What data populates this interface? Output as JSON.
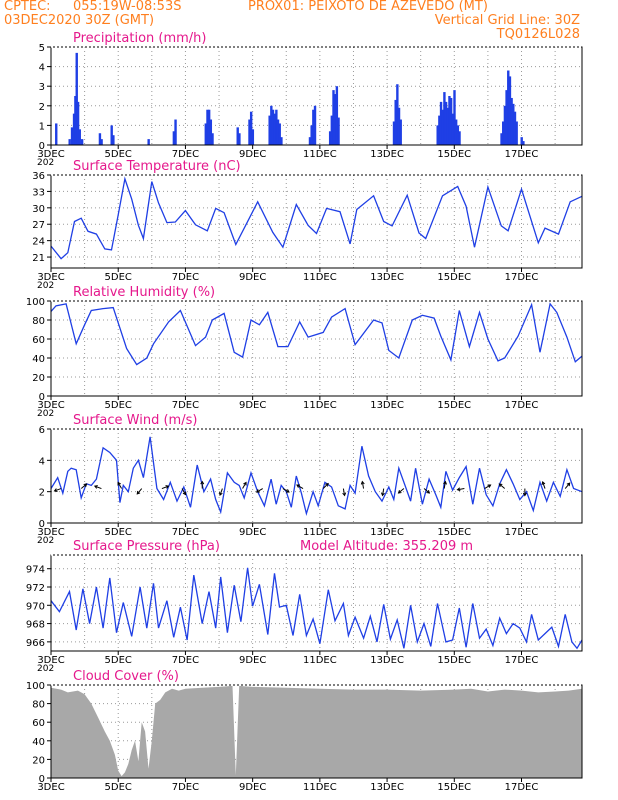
{
  "header": {
    "source": "CPTEC:",
    "coords": "055:19W-08:53S",
    "location": "PROX01: PEIXOTO DE AZEVEDO (MT)",
    "date": "03DEC2020 30Z (GMT)",
    "grid_note": "Vertical Grid Line: 30Z",
    "model": "TQ0126L028"
  },
  "colors": {
    "header": "#ff7f1f",
    "title": "#e5188c",
    "series": "#1f3fe5",
    "cloud": "#a8a8a8",
    "grid": "#9a9a9a",
    "axis": "#000000"
  },
  "x_axis": {
    "labels": [
      "3DEC",
      "5DEC",
      "7DEC",
      "9DEC",
      "11DEC",
      "13DEC",
      "15DEC",
      "17DEC"
    ],
    "label_days": [
      0,
      2,
      4,
      6,
      8,
      10,
      12,
      14
    ],
    "start_day": 0,
    "end_day": 15.8,
    "year_fragment": "202"
  },
  "chart_data": [
    {
      "id": "precip",
      "type": "bar",
      "title": "Precipitation (mm/h)",
      "ylim": [
        0,
        5
      ],
      "yticks": [
        0,
        1,
        2,
        3,
        4,
        5
      ],
      "bars": [
        [
          0.15,
          1.1
        ],
        [
          0.55,
          0.3
        ],
        [
          0.62,
          0.9
        ],
        [
          0.68,
          1.6
        ],
        [
          0.72,
          2.5
        ],
        [
          0.76,
          4.7
        ],
        [
          0.8,
          2.2
        ],
        [
          0.85,
          0.8
        ],
        [
          0.92,
          0.3
        ],
        [
          1.45,
          0.6
        ],
        [
          1.5,
          0.3
        ],
        [
          1.8,
          1.0
        ],
        [
          1.85,
          0.5
        ],
        [
          2.9,
          0.3
        ],
        [
          3.65,
          0.7
        ],
        [
          3.7,
          1.3
        ],
        [
          4.6,
          1.1
        ],
        [
          4.65,
          1.8
        ],
        [
          4.7,
          1.8
        ],
        [
          4.75,
          1.3
        ],
        [
          4.8,
          0.6
        ],
        [
          5.55,
          0.9
        ],
        [
          5.6,
          0.6
        ],
        [
          5.9,
          1.3
        ],
        [
          5.95,
          1.7
        ],
        [
          6.0,
          0.8
        ],
        [
          6.5,
          1.5
        ],
        [
          6.55,
          2.0
        ],
        [
          6.6,
          1.8
        ],
        [
          6.65,
          1.6
        ],
        [
          6.7,
          1.8
        ],
        [
          6.75,
          1.3
        ],
        [
          6.8,
          1.1
        ],
        [
          6.85,
          0.4
        ],
        [
          7.7,
          0.4
        ],
        [
          7.75,
          1.0
        ],
        [
          7.8,
          1.8
        ],
        [
          7.85,
          2.0
        ],
        [
          8.3,
          0.7
        ],
        [
          8.35,
          1.5
        ],
        [
          8.4,
          2.8
        ],
        [
          8.45,
          2.6
        ],
        [
          8.5,
          3.0
        ],
        [
          8.55,
          1.4
        ],
        [
          10.2,
          1.2
        ],
        [
          10.25,
          2.3
        ],
        [
          10.3,
          3.1
        ],
        [
          10.35,
          1.9
        ],
        [
          10.4,
          1.3
        ],
        [
          11.5,
          1.0
        ],
        [
          11.55,
          1.5
        ],
        [
          11.6,
          2.2
        ],
        [
          11.65,
          1.8
        ],
        [
          11.7,
          2.7
        ],
        [
          11.75,
          2.2
        ],
        [
          11.8,
          1.9
        ],
        [
          11.85,
          2.5
        ],
        [
          11.9,
          2.4
        ],
        [
          11.95,
          1.6
        ],
        [
          12.0,
          2.8
        ],
        [
          12.05,
          1.3
        ],
        [
          12.1,
          1.0
        ],
        [
          12.15,
          0.7
        ],
        [
          13.4,
          0.6
        ],
        [
          13.45,
          1.2
        ],
        [
          13.5,
          2.0
        ],
        [
          13.55,
          2.8
        ],
        [
          13.6,
          3.8
        ],
        [
          13.65,
          3.5
        ],
        [
          13.7,
          2.4
        ],
        [
          13.75,
          2.1
        ],
        [
          13.8,
          1.7
        ],
        [
          13.85,
          1.2
        ],
        [
          14.0,
          0.4
        ],
        [
          14.05,
          0.2
        ]
      ]
    },
    {
      "id": "temp",
      "type": "line",
      "title": "Surface Temperature (nC)",
      "ylim": [
        19,
        36
      ],
      "yticks": [
        21,
        24,
        27,
        30,
        33,
        36
      ],
      "x": [
        0,
        0.3,
        0.5,
        0.7,
        0.9,
        1.1,
        1.35,
        1.6,
        1.8,
        2.0,
        2.2,
        2.4,
        2.6,
        2.75,
        3.0,
        3.2,
        3.45,
        3.7,
        4.0,
        4.3,
        4.65,
        4.9,
        5.15,
        5.5,
        5.95,
        6.15,
        6.6,
        6.9,
        7.3,
        7.65,
        7.9,
        8.2,
        8.6,
        8.9,
        9.1,
        9.6,
        9.9,
        10.15,
        10.6,
        10.95,
        11.15,
        11.65,
        12.1,
        12.35,
        12.6,
        13.0,
        13.4,
        13.6,
        14.0,
        14.5,
        14.7,
        15.1,
        15.45,
        15.8
      ],
      "y": [
        23,
        20.7,
        21.8,
        27.5,
        28.1,
        25.7,
        25.2,
        22.5,
        22.3,
        28.7,
        35.3,
        31.6,
        26.8,
        24.4,
        34.8,
        30.9,
        27.3,
        27.4,
        29.5,
        26.9,
        25.8,
        29.9,
        29.1,
        23.3,
        28.7,
        31.1,
        25.5,
        22.8,
        30.6,
        26.8,
        25.3,
        29.9,
        29.3,
        23.4,
        29.7,
        32.2,
        27.5,
        26.7,
        32.3,
        25.4,
        24.4,
        32.2,
        33.9,
        30.3,
        22.8,
        33.8,
        26.7,
        25.8,
        33.4,
        23.6,
        26.3,
        25.2,
        31.1,
        32.1
      ]
    },
    {
      "id": "rh",
      "type": "line",
      "title": "Relative Humidity (%)",
      "ylim": [
        0,
        100
      ],
      "yticks": [
        0,
        20,
        40,
        60,
        80,
        100
      ],
      "x": [
        0,
        0.15,
        0.45,
        0.75,
        1.0,
        1.2,
        1.55,
        1.85,
        2.25,
        2.55,
        2.85,
        3.05,
        3.5,
        3.85,
        4.3,
        4.6,
        4.8,
        5.15,
        5.45,
        5.7,
        5.95,
        6.2,
        6.45,
        6.75,
        7.05,
        7.4,
        7.65,
        8.1,
        8.35,
        8.75,
        9.05,
        9.6,
        9.85,
        10.05,
        10.35,
        10.75,
        11.05,
        11.4,
        11.6,
        11.9,
        12.15,
        12.45,
        12.75,
        13.0,
        13.3,
        13.5,
        13.9,
        14.3,
        14.55,
        14.85,
        15.05,
        15.35,
        15.6,
        15.8
      ],
      "y": [
        89,
        95,
        97,
        55,
        75,
        90,
        92,
        93,
        50,
        33,
        40,
        55,
        78,
        90,
        53,
        62,
        80,
        87,
        46,
        41,
        80,
        75,
        88,
        52,
        52,
        78,
        62,
        67,
        83,
        92,
        54,
        80,
        77,
        48,
        40,
        80,
        85,
        82,
        63,
        38,
        90,
        52,
        88,
        60,
        37,
        40,
        63,
        96,
        46,
        97,
        88,
        62,
        36,
        42
      ]
    },
    {
      "id": "wind",
      "type": "line",
      "title": "Surface Wind (m/s)",
      "ylim": [
        0,
        6
      ],
      "yticks": [
        0,
        2,
        4,
        6
      ],
      "x": [
        0,
        0.2,
        0.35,
        0.5,
        0.6,
        0.75,
        0.9,
        1.05,
        1.2,
        1.35,
        1.55,
        1.75,
        1.95,
        2.05,
        2.15,
        2.3,
        2.45,
        2.6,
        2.75,
        2.95,
        3.15,
        3.35,
        3.55,
        3.75,
        3.95,
        4.15,
        4.35,
        4.55,
        4.75,
        4.9,
        5.05,
        5.25,
        5.45,
        5.6,
        5.75,
        5.95,
        6.15,
        6.35,
        6.55,
        6.7,
        6.85,
        7.0,
        7.15,
        7.3,
        7.45,
        7.6,
        7.8,
        7.95,
        8.15,
        8.35,
        8.55,
        8.75,
        8.9,
        9.05,
        9.25,
        9.45,
        9.65,
        9.85,
        10.05,
        10.2,
        10.35,
        10.55,
        10.7,
        10.85,
        11.05,
        11.25,
        11.45,
        11.6,
        11.75,
        11.95,
        12.15,
        12.35,
        12.55,
        12.75,
        12.95,
        13.15,
        13.35,
        13.55,
        13.75,
        13.95,
        14.15,
        14.35,
        14.55,
        14.75,
        14.95,
        15.15,
        15.35,
        15.55,
        15.8
      ],
      "y": [
        2.2,
        2.9,
        1.9,
        3.3,
        3.5,
        3.4,
        1.6,
        2.5,
        2.4,
        2.8,
        4.8,
        4.5,
        4.0,
        1.3,
        2.4,
        2.0,
        3.5,
        4.0,
        2.9,
        5.5,
        2.2,
        1.5,
        2.6,
        1.4,
        2.3,
        1.0,
        3.7,
        2.0,
        2.8,
        1.5,
        0.7,
        3.2,
        2.6,
        2.4,
        1.6,
        3.2,
        2.0,
        1.1,
        2.8,
        1.2,
        2.4,
        2.0,
        1.0,
        3.0,
        1.9,
        0.6,
        2.0,
        1.1,
        2.6,
        2.3,
        1.1,
        0.9,
        2.4,
        1.9,
        4.9,
        3.0,
        2.0,
        1.4,
        2.3,
        1.5,
        3.5,
        2.3,
        1.4,
        3.5,
        1.2,
        2.8,
        1.8,
        1.0,
        3.3,
        2.1,
        2.9,
        3.6,
        1.2,
        3.5,
        1.8,
        1.1,
        2.5,
        3.4,
        2.5,
        1.5,
        2.0,
        0.8,
        2.6,
        1.4,
        2.6,
        1.7,
        3.4,
        2.2,
        2.0
      ]
    },
    {
      "id": "pres",
      "type": "line",
      "title": "Surface Pressure (hPa)",
      "annotation": "Model Altitude: 355.209  m",
      "ylim": [
        965,
        975.5
      ],
      "yticks": [
        966,
        968,
        970,
        972,
        974
      ],
      "x": [
        0,
        0.25,
        0.55,
        0.75,
        0.95,
        1.15,
        1.35,
        1.55,
        1.75,
        1.95,
        2.15,
        2.4,
        2.65,
        2.85,
        3.05,
        3.2,
        3.45,
        3.65,
        3.85,
        4.05,
        4.25,
        4.5,
        4.7,
        4.9,
        5.05,
        5.25,
        5.45,
        5.65,
        5.85,
        6.0,
        6.2,
        6.45,
        6.65,
        6.8,
        7.0,
        7.2,
        7.4,
        7.6,
        7.8,
        8.0,
        8.25,
        8.45,
        8.7,
        8.85,
        9.05,
        9.3,
        9.5,
        9.7,
        9.9,
        10.1,
        10.3,
        10.5,
        10.7,
        10.9,
        11.1,
        11.3,
        11.5,
        11.75,
        11.95,
        12.15,
        12.35,
        12.55,
        12.75,
        12.95,
        13.15,
        13.35,
        13.55,
        13.75,
        13.95,
        14.15,
        14.3,
        14.5,
        14.7,
        14.9,
        15.1,
        15.3,
        15.5,
        15.65,
        15.8
      ],
      "y": [
        970.5,
        969.3,
        971.5,
        967.3,
        971.8,
        968.0,
        972.0,
        967.5,
        973.0,
        967.0,
        970.3,
        966.6,
        972.0,
        967.5,
        972.4,
        967.5,
        970.5,
        966.5,
        969.8,
        966.2,
        973.3,
        968.0,
        971.5,
        967.5,
        973.1,
        967.0,
        972.2,
        968.2,
        974.1,
        969.9,
        972.3,
        966.8,
        973.5,
        969.8,
        970.0,
        966.7,
        971.2,
        966.7,
        968.5,
        965.8,
        971.7,
        968.3,
        970.2,
        966.7,
        968.7,
        966.4,
        968.8,
        966.0,
        970.1,
        966.3,
        968.4,
        965.3,
        970.0,
        966.0,
        968.0,
        965.5,
        970.2,
        966.0,
        966.2,
        969.7,
        965.4,
        970.2,
        966.4,
        967.4,
        965.6,
        968.6,
        966.9,
        968.0,
        967.5,
        966.0,
        969.0,
        966.2,
        966.9,
        967.6,
        965.5,
        969.0,
        966.0,
        965.3,
        966.2
      ]
    },
    {
      "id": "cloud",
      "type": "area",
      "title": "Cloud Cover (%)",
      "ylim": [
        0,
        100
      ],
      "yticks": [
        0,
        20,
        40,
        60,
        80,
        100
      ],
      "x": [
        0,
        0.3,
        0.5,
        0.8,
        1.0,
        1.2,
        1.4,
        1.6,
        1.75,
        1.9,
        2.0,
        2.1,
        2.2,
        2.3,
        2.4,
        2.5,
        2.6,
        2.7,
        2.8,
        2.9,
        3.0,
        3.1,
        3.25,
        3.4,
        3.6,
        3.8,
        4.0,
        4.5,
        5.0,
        5.4,
        5.5,
        5.6,
        6.0,
        7.0,
        8.0,
        9.0,
        10.0,
        11.0,
        12.0,
        12.5,
        13.0,
        13.5,
        14.0,
        14.5,
        15.0,
        15.4,
        15.8
      ],
      "y": [
        97,
        95,
        92,
        94,
        90,
        80,
        65,
        50,
        40,
        25,
        8,
        2,
        6,
        15,
        30,
        40,
        18,
        60,
        50,
        10,
        40,
        80,
        84,
        92,
        96,
        94,
        96,
        97,
        98,
        99,
        3,
        99,
        98,
        97,
        96,
        95,
        95,
        94,
        95,
        96,
        93,
        95,
        94,
        92,
        93,
        94,
        96
      ]
    }
  ]
}
